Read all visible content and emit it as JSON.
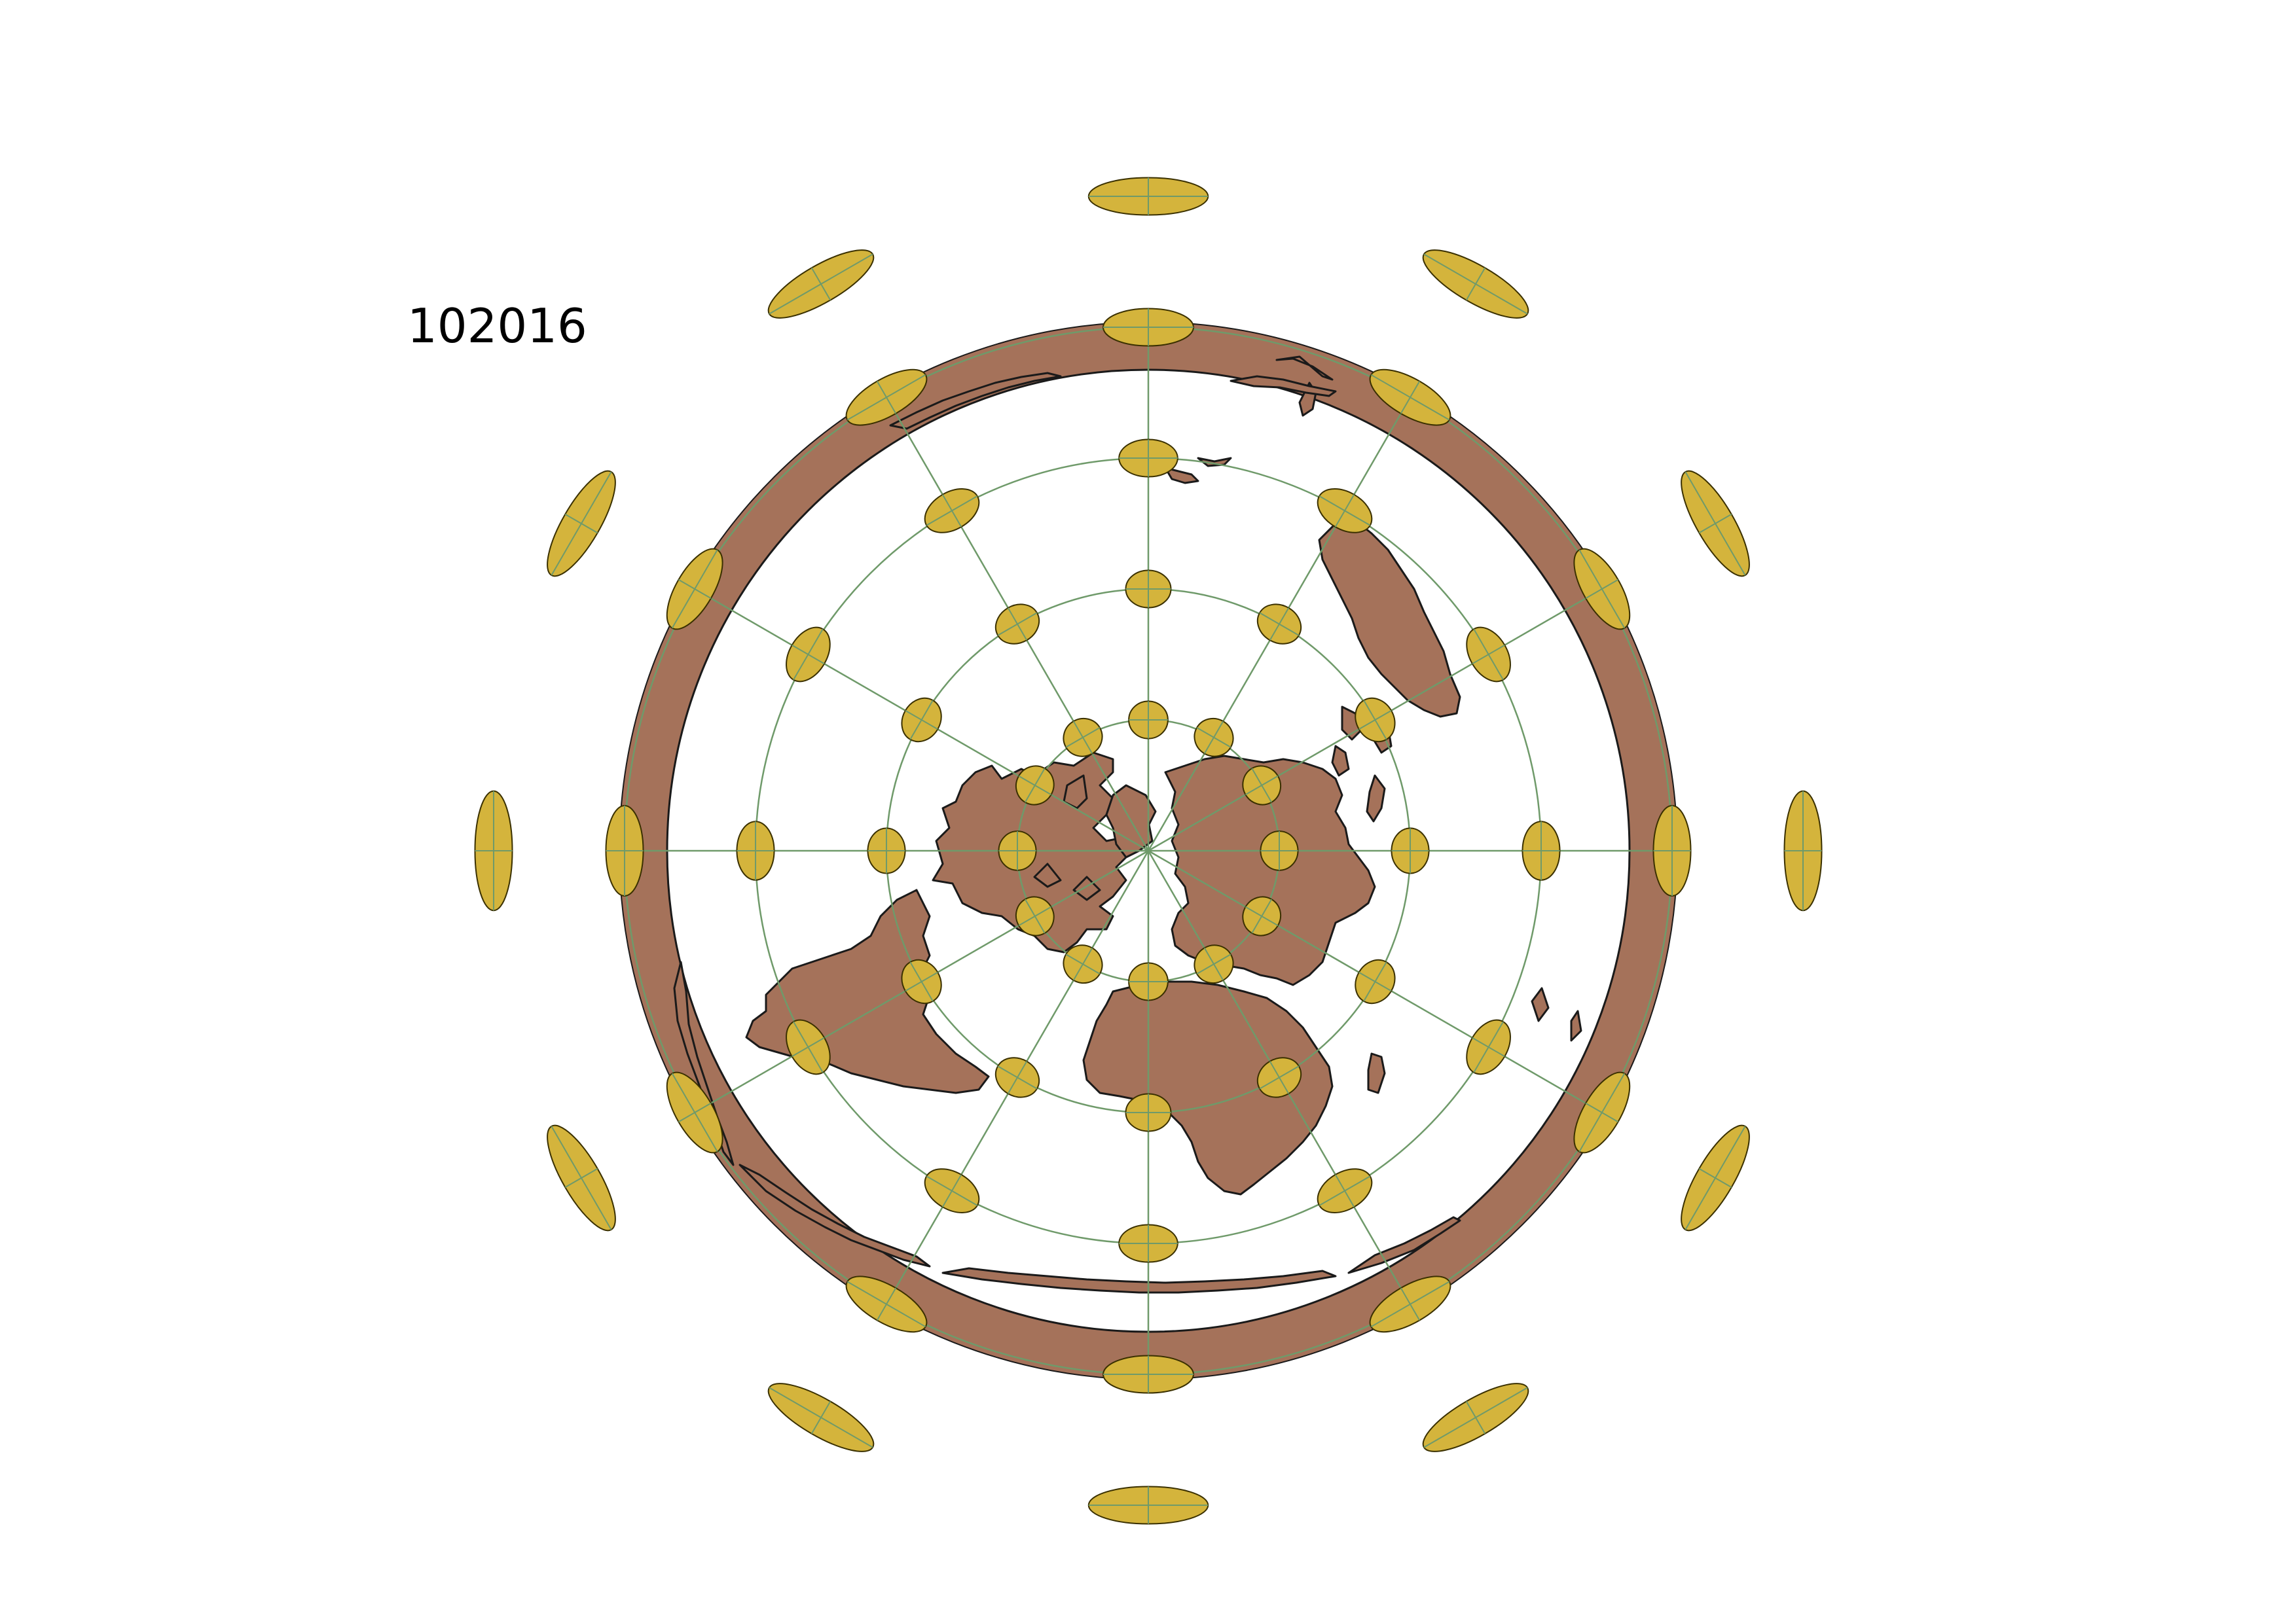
{
  "title": "102016",
  "projection": "azimuthal-equidistant-north-polar",
  "colors": {
    "land": "#a5725a",
    "land_stroke": "#1a1a1a",
    "ocean": "#ffffff",
    "graticule": "#6f9a6a",
    "indicatrix_fill": "#d4b43c",
    "indicatrix_stroke": "#3a3000"
  },
  "graticule": {
    "meridian_step_deg": 30,
    "parallel_step_deg": 30
  },
  "indicatrix": {
    "latitudes": [
      60,
      30,
      0,
      -30,
      -60
    ],
    "longitude_step_deg": 30
  }
}
